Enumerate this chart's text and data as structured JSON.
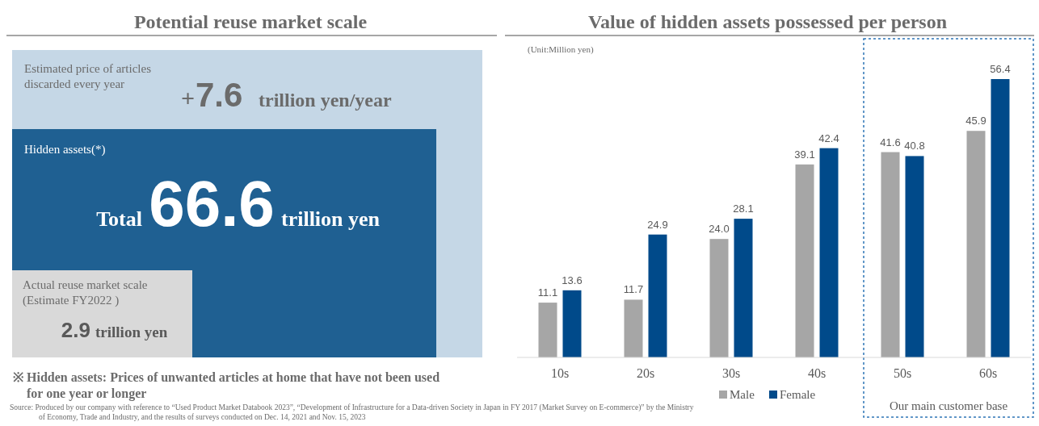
{
  "chart_data": [
    {
      "type": "other",
      "title": "Potential reuse market scale",
      "categories": [
        "Estimated price of articles discarded every year",
        "Hidden assets(*)",
        "Actual reuse market scale (Estimate FY2022 )"
      ],
      "values": [
        7.6,
        66.6,
        2.9
      ],
      "data_labels": true,
      "colors": [
        "#c5d7e6",
        "#1f6092",
        "#d9d9d9"
      ],
      "annotations": [
        "+",
        "trillion yen/year",
        "Total",
        "trillion yen",
        "※ Hidden assets: Prices of unwanted articles at home that have not been used for one year or longer",
        "Source: Produced by our company with reference to “Used Product Market Databook 2023”, “Development of Infrastructure for a Data-driven Society in Japan in FY 2017 (Market Survey on E-commerce)” by the Ministry of Economy, Trade and Industry, and the results of surveys conducted on Dec. 14, 2021 and Nov. 15, 2023"
      ]
    },
    {
      "type": "bar",
      "title": "Value of hidden assets possessed per person",
      "ylabel": "(Unit:Million yen)",
      "categories": [
        "10s",
        "20s",
        "30s",
        "40s",
        "50s",
        "60s"
      ],
      "series": [
        {
          "name": "Male",
          "color": "#a6a6a6",
          "values": [
            11.1,
            11.7,
            24.0,
            39.1,
            41.6,
            45.9
          ],
          "value_labels": [
            "11.1",
            "11.7",
            "24.0",
            "39.1",
            "41.6",
            "45.9"
          ]
        },
        {
          "name": "Female",
          "color": "#004a8a",
          "values": [
            13.6,
            24.9,
            28.1,
            42.4,
            40.8,
            56.4
          ],
          "value_labels": [
            "13.6",
            "24.9",
            "28.1",
            "42.4",
            "40.8",
            "56.4"
          ]
        }
      ],
      "annotations": [
        "Our main customer base"
      ],
      "legend": "bottom"
    }
  ]
}
